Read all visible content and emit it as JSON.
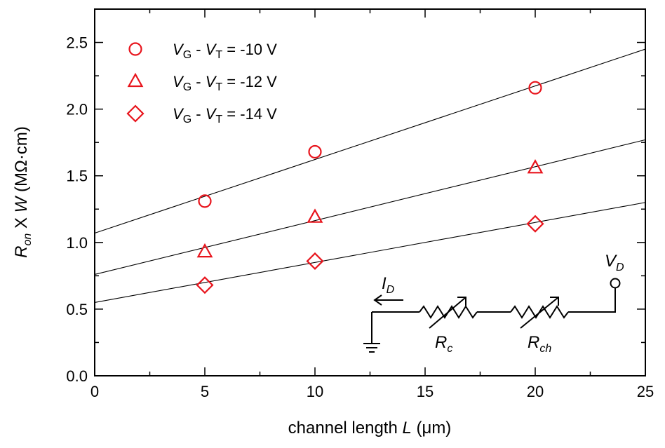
{
  "chart_data": {
    "type": "scatter",
    "xlabel": "channel length L (μm)",
    "ylabel": "R_on X W (MΩ·cm)",
    "xlim": [
      0,
      25
    ],
    "ylim": [
      0,
      2.75
    ],
    "xticks": [
      "0",
      "5",
      "10",
      "15",
      "20",
      "25"
    ],
    "yticks": [
      "0.0",
      "0.5",
      "1.0",
      "1.5",
      "2.0",
      "2.5"
    ],
    "legend_position": "top-left",
    "series": [
      {
        "name": "V_G - V_T = -10 V",
        "label_parts": [
          "V",
          "G",
          " - ",
          "V",
          "T",
          " = -10 V"
        ],
        "marker": "circle",
        "color": "#e8141c",
        "x": [
          5,
          10,
          20
        ],
        "y": [
          1.31,
          1.68,
          2.16
        ],
        "fit": {
          "x": [
            0,
            25
          ],
          "y": [
            1.07,
            2.45
          ]
        }
      },
      {
        "name": "V_G - V_T = -12 V",
        "label_parts": [
          "V",
          "G",
          " - ",
          "V",
          "T",
          " = -12 V"
        ],
        "marker": "triangle",
        "color": "#e8141c",
        "x": [
          5,
          10,
          20
        ],
        "y": [
          0.93,
          1.19,
          1.56
        ],
        "fit": {
          "x": [
            0,
            25
          ],
          "y": [
            0.76,
            1.77
          ]
        }
      },
      {
        "name": "V_G - V_T = -14 V",
        "label_parts": [
          "V",
          "G",
          " - ",
          "V",
          "T",
          " = -14 V"
        ],
        "marker": "diamond",
        "color": "#e8141c",
        "x": [
          5,
          10,
          20
        ],
        "y": [
          0.68,
          0.86,
          1.14
        ],
        "fit": {
          "x": [
            0,
            25
          ],
          "y": [
            0.55,
            1.3
          ]
        }
      }
    ],
    "inset": {
      "current_label": [
        "I",
        "D"
      ],
      "drain_label": [
        "V",
        "D"
      ],
      "resistor_labels": [
        [
          "R",
          "c"
        ],
        [
          "R",
          "ch"
        ]
      ]
    }
  }
}
